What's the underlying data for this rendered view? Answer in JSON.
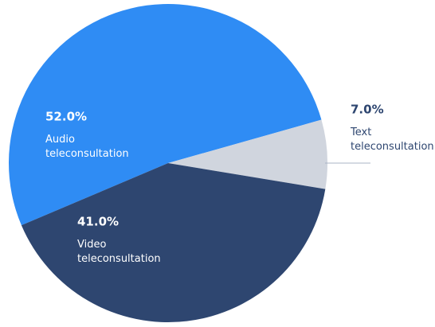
{
  "chart_data": {
    "type": "pie",
    "categories": [
      "Audio teleconsultation",
      "Text teleconsultation",
      "Video teleconsultation"
    ],
    "values": [
      52,
      7,
      41
    ],
    "value_labels": [
      "52.0%",
      "7.0%",
      "41.0%"
    ],
    "colors": [
      "#2f8cf4",
      "#d0d5de",
      "#2e4670"
    ]
  }
}
